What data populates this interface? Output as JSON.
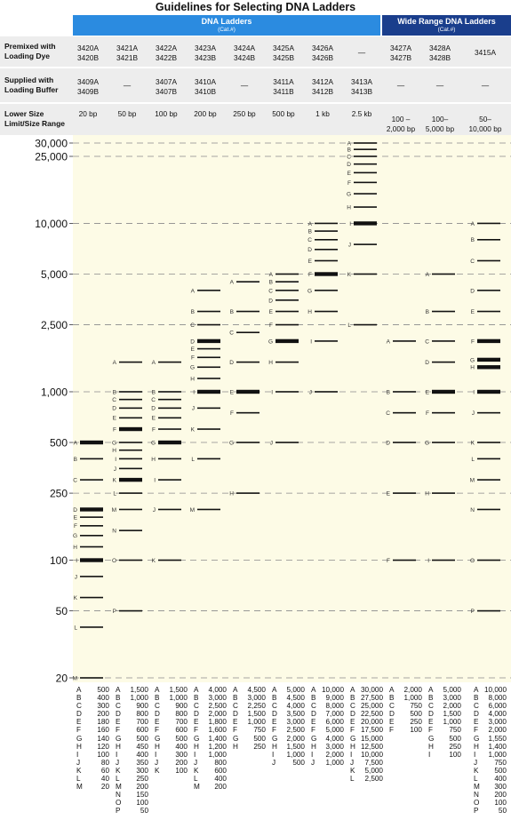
{
  "title": "Guidelines for Selecting DNA Ladders",
  "header_groups": [
    {
      "label": "DNA Ladders",
      "sub": "(Cat.#)"
    },
    {
      "label": "Wide Range DNA Ladders",
      "sub": "(Cat.#)"
    }
  ],
  "row_labels": {
    "premixed": [
      "Premixed with",
      "Loading Dye"
    ],
    "supplied": [
      "Supplied with",
      "Loading Buffer"
    ],
    "size": [
      "Lower Size",
      "Limit/Size Range"
    ]
  },
  "columns": [
    {
      "premixed": [
        "3420A",
        "3420B"
      ],
      "supplied": [
        "3409A",
        "3409B"
      ],
      "size": [
        "20 bp"
      ]
    },
    {
      "premixed": [
        "3421A",
        "3421B"
      ],
      "supplied": [
        "—"
      ],
      "size": [
        "50 bp"
      ]
    },
    {
      "premixed": [
        "3422A",
        "3422B"
      ],
      "supplied": [
        "3407A",
        "3407B"
      ],
      "size": [
        "100 bp"
      ]
    },
    {
      "premixed": [
        "3423A",
        "3423B"
      ],
      "supplied": [
        "3410A",
        "3410B"
      ],
      "size": [
        "200 bp"
      ]
    },
    {
      "premixed": [
        "3424A",
        "3424B"
      ],
      "supplied": [
        "—"
      ],
      "size": [
        "250 bp"
      ]
    },
    {
      "premixed": [
        "3425A",
        "3425B"
      ],
      "supplied": [
        "3411A",
        "3411B"
      ],
      "size": [
        "500 bp"
      ]
    },
    {
      "premixed": [
        "3426A",
        "3426B"
      ],
      "supplied": [
        "3412A",
        "3412B"
      ],
      "size": [
        "1 kb"
      ]
    },
    {
      "premixed": [
        "—"
      ],
      "supplied": [
        "3413A",
        "3413B"
      ],
      "size": [
        "2.5 kb"
      ]
    },
    {
      "premixed": [
        "3427A",
        "3427B"
      ],
      "supplied": [
        "—"
      ],
      "size": [
        "100 –",
        "2,000 bp"
      ]
    },
    {
      "premixed": [
        "3428A",
        "3428B"
      ],
      "supplied": [
        "—"
      ],
      "size": [
        "100–",
        "5,000 bp"
      ]
    },
    {
      "premixed": [
        "3415A"
      ],
      "supplied": [
        "—"
      ],
      "size": [
        "50–",
        "10,000 bp"
      ]
    }
  ],
  "chart_data": {
    "type": "gel-ladder",
    "y_scale": "log",
    "ylim": [
      20,
      30000
    ],
    "y_ticks": [
      20,
      50,
      100,
      250,
      500,
      1000,
      2500,
      5000,
      10000,
      25000,
      30000
    ],
    "y_tick_labels": [
      "20",
      "50",
      "100",
      "250",
      "500",
      "1,000",
      "2,500",
      "5,000",
      "10,000",
      "25,000",
      "30,000"
    ],
    "gridlines": "dashed",
    "lanes": [
      {
        "bands": [
          {
            "label": "A",
            "value": "500",
            "bp": 500,
            "bold": true
          },
          {
            "label": "B",
            "value": "400",
            "bp": 400
          },
          {
            "label": "C",
            "value": "300",
            "bp": 300
          },
          {
            "label": "D",
            "value": "200",
            "bp": 200,
            "bold": true
          },
          {
            "label": "E",
            "value": "180",
            "bp": 180
          },
          {
            "label": "F",
            "value": "160",
            "bp": 160
          },
          {
            "label": "G",
            "value": "140",
            "bp": 140
          },
          {
            "label": "H",
            "value": "120",
            "bp": 120
          },
          {
            "label": "I",
            "value": "100",
            "bp": 100,
            "bold": true
          },
          {
            "label": "J",
            "value": "80",
            "bp": 80
          },
          {
            "label": "K",
            "value": "60",
            "bp": 60
          },
          {
            "label": "L",
            "value": "40",
            "bp": 40
          },
          {
            "label": "M",
            "value": "20",
            "bp": 20
          }
        ]
      },
      {
        "bands": [
          {
            "label": "A",
            "value": "1,500",
            "bp": 1500
          },
          {
            "label": "B",
            "value": "1,000",
            "bp": 1000
          },
          {
            "label": "C",
            "value": "900",
            "bp": 900
          },
          {
            "label": "D",
            "value": "800",
            "bp": 800
          },
          {
            "label": "E",
            "value": "700",
            "bp": 700
          },
          {
            "label": "F",
            "value": "600",
            "bp": 600,
            "bold": true
          },
          {
            "label": "G",
            "value": "500",
            "bp": 500
          },
          {
            "label": "H",
            "value": "450",
            "bp": 450
          },
          {
            "label": "I",
            "value": "400",
            "bp": 400
          },
          {
            "label": "J",
            "value": "350",
            "bp": 350
          },
          {
            "label": "K",
            "value": "300",
            "bp": 300,
            "bold": true
          },
          {
            "label": "L",
            "value": "250",
            "bp": 250
          },
          {
            "label": "M",
            "value": "200",
            "bp": 200
          },
          {
            "label": "N",
            "value": "150",
            "bp": 150
          },
          {
            "label": "O",
            "value": "100",
            "bp": 100
          },
          {
            "label": "P",
            "value": "50",
            "bp": 50
          }
        ]
      },
      {
        "bands": [
          {
            "label": "A",
            "value": "1,500",
            "bp": 1500
          },
          {
            "label": "B",
            "value": "1,000",
            "bp": 1000
          },
          {
            "label": "C",
            "value": "900",
            "bp": 900
          },
          {
            "label": "D",
            "value": "800",
            "bp": 800
          },
          {
            "label": "E",
            "value": "700",
            "bp": 700
          },
          {
            "label": "F",
            "value": "600",
            "bp": 600
          },
          {
            "label": "G",
            "value": "500",
            "bp": 500,
            "bold": true
          },
          {
            "label": "H",
            "value": "400",
            "bp": 400
          },
          {
            "label": "I",
            "value": "300",
            "bp": 300
          },
          {
            "label": "J",
            "value": "200",
            "bp": 200
          },
          {
            "label": "K",
            "value": "100",
            "bp": 100
          }
        ]
      },
      {
        "bands": [
          {
            "label": "A",
            "value": "4,000",
            "bp": 4000
          },
          {
            "label": "B",
            "value": "3,000",
            "bp": 3000
          },
          {
            "label": "C",
            "value": "2,500",
            "bp": 2500
          },
          {
            "label": "D",
            "value": "2,000",
            "bp": 2000,
            "bold": true
          },
          {
            "label": "E",
            "value": "1,800",
            "bp": 1800
          },
          {
            "label": "F",
            "value": "1,600",
            "bp": 1600
          },
          {
            "label": "G",
            "value": "1,400",
            "bp": 1400
          },
          {
            "label": "H",
            "value": "1,200",
            "bp": 1200
          },
          {
            "label": "I",
            "value": "1,000",
            "bp": 1000,
            "bold": true
          },
          {
            "label": "J",
            "value": "800",
            "bp": 800
          },
          {
            "label": "K",
            "value": "600",
            "bp": 600
          },
          {
            "label": "L",
            "value": "400",
            "bp": 400
          },
          {
            "label": "M",
            "value": "200",
            "bp": 200
          }
        ]
      },
      {
        "bands": [
          {
            "label": "A",
            "value": "4,500",
            "bp": 4500
          },
          {
            "label": "B",
            "value": "3,000",
            "bp": 3000
          },
          {
            "label": "C",
            "value": "2,250",
            "bp": 2250
          },
          {
            "label": "D",
            "value": "1,500",
            "bp": 1500
          },
          {
            "label": "E",
            "value": "1,000",
            "bp": 1000,
            "bold": true
          },
          {
            "label": "F",
            "value": "750",
            "bp": 750
          },
          {
            "label": "G",
            "value": "500",
            "bp": 500
          },
          {
            "label": "H",
            "value": "250",
            "bp": 250
          }
        ]
      },
      {
        "bands": [
          {
            "label": "A",
            "value": "5,000",
            "bp": 5000
          },
          {
            "label": "B",
            "value": "4,500",
            "bp": 4500
          },
          {
            "label": "C",
            "value": "4,000",
            "bp": 4000
          },
          {
            "label": "D",
            "value": "3,500",
            "bp": 3500
          },
          {
            "label": "E",
            "value": "3,000",
            "bp": 3000
          },
          {
            "label": "F",
            "value": "2,500",
            "bp": 2500
          },
          {
            "label": "G",
            "value": "2,000",
            "bp": 2000,
            "bold": true
          },
          {
            "label": "H",
            "value": "1,500",
            "bp": 1500
          },
          {
            "label": "I",
            "value": "1,000",
            "bp": 1000
          },
          {
            "label": "J",
            "value": "500",
            "bp": 500
          }
        ]
      },
      {
        "bands": [
          {
            "label": "A",
            "value": "10,000",
            "bp": 10000
          },
          {
            "label": "B",
            "value": "9,000",
            "bp": 9000
          },
          {
            "label": "C",
            "value": "8,000",
            "bp": 8000
          },
          {
            "label": "D",
            "value": "7,000",
            "bp": 7000
          },
          {
            "label": "E",
            "value": "6,000",
            "bp": 6000
          },
          {
            "label": "F",
            "value": "5,000",
            "bp": 5000,
            "bold": true
          },
          {
            "label": "G",
            "value": "4,000",
            "bp": 4000
          },
          {
            "label": "H",
            "value": "3,000",
            "bp": 3000
          },
          {
            "label": "I",
            "value": "2,000",
            "bp": 2000
          },
          {
            "label": "J",
            "value": "1,000",
            "bp": 1000
          }
        ]
      },
      {
        "bands": [
          {
            "label": "A",
            "value": "30,000",
            "bp": 30000
          },
          {
            "label": "B",
            "value": "27,500",
            "bp": 27500
          },
          {
            "label": "C",
            "value": "25,000",
            "bp": 25000
          },
          {
            "label": "D",
            "value": "22,500",
            "bp": 22500
          },
          {
            "label": "E",
            "value": "20,000",
            "bp": 20000
          },
          {
            "label": "F",
            "value": "17,500",
            "bp": 17500
          },
          {
            "label": "G",
            "value": "15,000",
            "bp": 15000
          },
          {
            "label": "H",
            "value": "12,500",
            "bp": 12500
          },
          {
            "label": "I",
            "value": "10,000",
            "bp": 10000,
            "bold": true
          },
          {
            "label": "J",
            "value": "7,500",
            "bp": 7500
          },
          {
            "label": "K",
            "value": "5,000",
            "bp": 5000
          },
          {
            "label": "L",
            "value": "2,500",
            "bp": 2500
          }
        ]
      },
      {
        "bands": [
          {
            "label": "A",
            "value": "2,000",
            "bp": 2000
          },
          {
            "label": "B",
            "value": "1,000",
            "bp": 1000
          },
          {
            "label": "C",
            "value": "750",
            "bp": 750
          },
          {
            "label": "D",
            "value": "500",
            "bp": 500
          },
          {
            "label": "E",
            "value": "250",
            "bp": 250
          },
          {
            "label": "F",
            "value": "100",
            "bp": 100
          }
        ]
      },
      {
        "bands": [
          {
            "label": "A",
            "value": "5,000",
            "bp": 5000
          },
          {
            "label": "B",
            "value": "3,000",
            "bp": 3000
          },
          {
            "label": "C",
            "value": "2,000",
            "bp": 2000
          },
          {
            "label": "D",
            "value": "1,500",
            "bp": 1500
          },
          {
            "label": "E",
            "value": "1,000",
            "bp": 1000,
            "bold": true
          },
          {
            "label": "F",
            "value": "750",
            "bp": 750
          },
          {
            "label": "G",
            "value": "500",
            "bp": 500
          },
          {
            "label": "H",
            "value": "250",
            "bp": 250
          },
          {
            "label": "I",
            "value": "100",
            "bp": 100
          }
        ]
      },
      {
        "bands": [
          {
            "label": "A",
            "value": "10,000",
            "bp": 10000
          },
          {
            "label": "B",
            "value": "8,000",
            "bp": 8000
          },
          {
            "label": "C",
            "value": "6,000",
            "bp": 6000
          },
          {
            "label": "D",
            "value": "4,000",
            "bp": 4000
          },
          {
            "label": "E",
            "value": "3,000",
            "bp": 3000
          },
          {
            "label": "F",
            "value": "2,000",
            "bp": 2000,
            "bold": true
          },
          {
            "label": "G",
            "value": "1,550",
            "bp": 1550,
            "bold": true
          },
          {
            "label": "H",
            "value": "1,400",
            "bp": 1400,
            "bold": true
          },
          {
            "label": "I",
            "value": "1,000",
            "bp": 1000,
            "bold": true
          },
          {
            "label": "J",
            "value": "750",
            "bp": 750
          },
          {
            "label": "K",
            "value": "500",
            "bp": 500
          },
          {
            "label": "L",
            "value": "400",
            "bp": 400
          },
          {
            "label": "M",
            "value": "300",
            "bp": 300
          },
          {
            "label": "N",
            "value": "200",
            "bp": 200
          },
          {
            "label": "O",
            "value": "100",
            "bp": 100
          },
          {
            "label": "P",
            "value": "50",
            "bp": 50
          }
        ]
      }
    ]
  },
  "colors": {
    "header_dna": "#2b8be0",
    "header_wide": "#1a3e8c",
    "row_bg": "#ededed",
    "plot_bg": "#fdfbe6",
    "gridline": "#8a8a8a",
    "band": "#111111"
  }
}
